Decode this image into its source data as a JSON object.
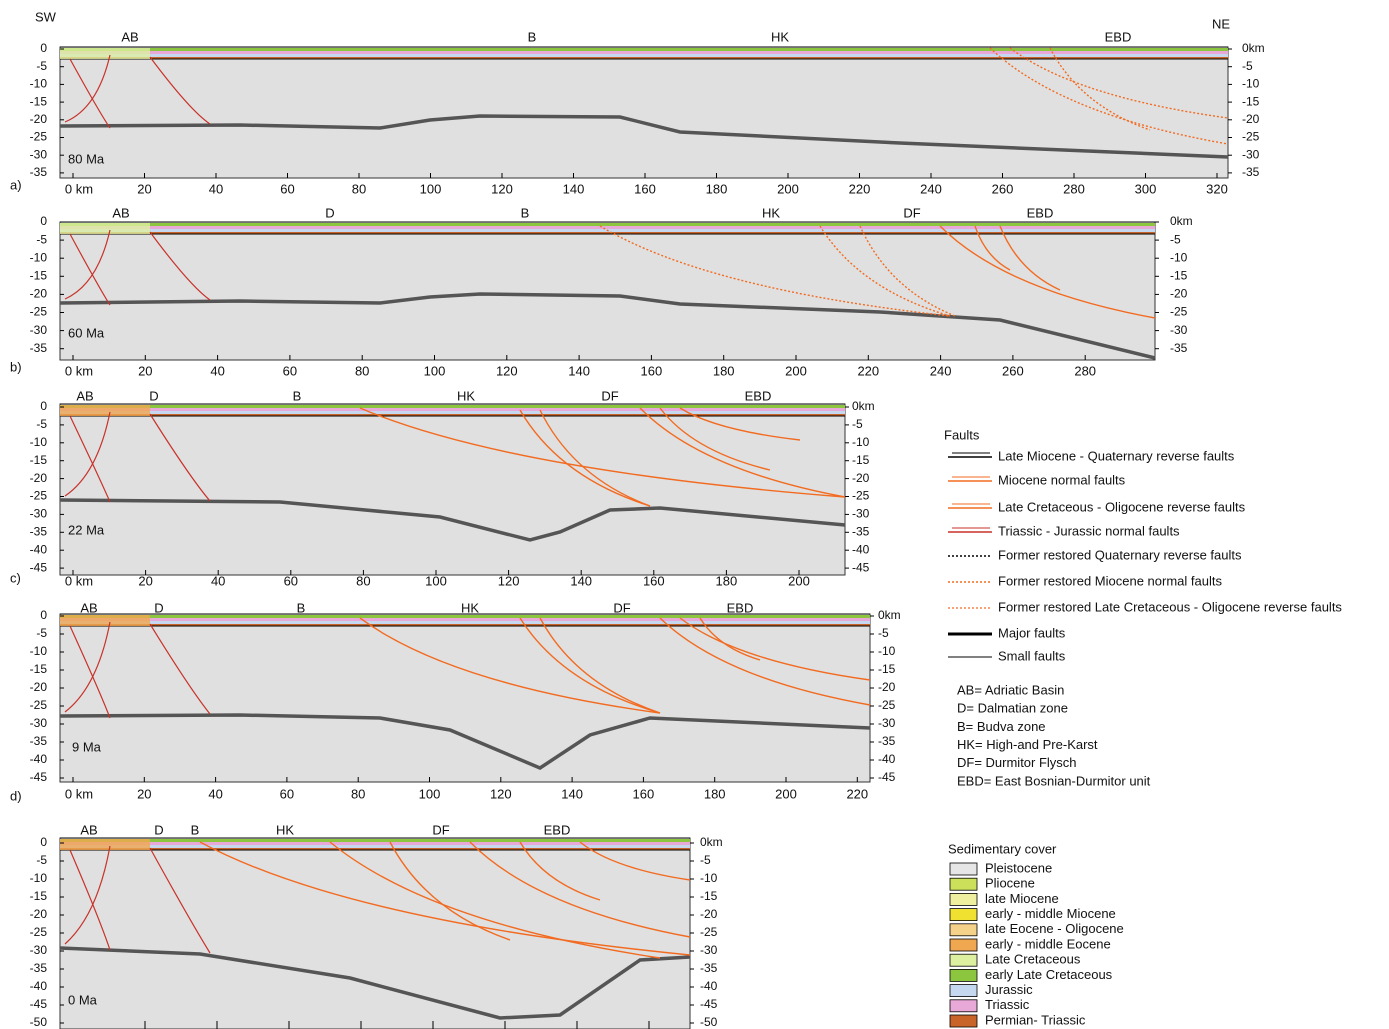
{
  "orientation": {
    "left": "SW",
    "right": "NE"
  },
  "panels": [
    {
      "letter": "a)",
      "age": "80 Ma",
      "zones": [
        "AB",
        "B",
        "HK",
        "EBD"
      ],
      "x_ticks": [
        "0 km",
        "20",
        "40",
        "60",
        "80",
        "100",
        "120",
        "140",
        "160",
        "180",
        "200",
        "220",
        "240",
        "260",
        "280",
        "300",
        "320"
      ],
      "depth_ticks": [
        "0",
        "-5",
        "-10",
        "-15",
        "-20",
        "-25",
        "-30",
        "-35"
      ],
      "right_ticks": [
        "0km",
        "-5",
        "-10",
        "-15",
        "-20",
        "-25",
        "-30",
        "-35"
      ]
    },
    {
      "letter": "b)",
      "age": "60 Ma",
      "zones": [
        "AB",
        "D",
        "B",
        "HK",
        "DF",
        "EBD"
      ],
      "x_ticks": [
        "0 km",
        "20",
        "40",
        "60",
        "80",
        "100",
        "120",
        "140",
        "160",
        "180",
        "200",
        "220",
        "240",
        "260",
        "280"
      ],
      "depth_ticks": [
        "0",
        "-5",
        "-10",
        "-15",
        "-20",
        "-25",
        "-30",
        "-35"
      ],
      "right_ticks": [
        "0km",
        "-5",
        "-10",
        "-15",
        "-20",
        "-25",
        "-30",
        "-35"
      ]
    },
    {
      "letter": "c)",
      "age": "22 Ma",
      "zones": [
        "AB",
        "D",
        "B",
        "HK",
        "DF",
        "EBD"
      ],
      "x_ticks": [
        "0 km",
        "20",
        "40",
        "60",
        "80",
        "100",
        "120",
        "140",
        "160",
        "180",
        "200"
      ],
      "depth_ticks": [
        "0",
        "-5",
        "-10",
        "-15",
        "-20",
        "-25",
        "-30",
        "-35",
        "-40",
        "-45"
      ],
      "right_ticks": [
        "0km",
        "-5",
        "-10",
        "-15",
        "-20",
        "-25",
        "-30",
        "-35",
        "-40",
        "-45"
      ]
    },
    {
      "letter": "d)",
      "age": "9 Ma",
      "zones": [
        "AB",
        "D",
        "B",
        "HK",
        "DF",
        "EBD"
      ],
      "x_ticks": [
        "0 km",
        "20",
        "40",
        "60",
        "80",
        "100",
        "120",
        "140",
        "160",
        "180",
        "200",
        "220"
      ],
      "depth_ticks": [
        "0",
        "-5",
        "-10",
        "-15",
        "-20",
        "-25",
        "-30",
        "-35",
        "-40",
        "-45"
      ],
      "right_ticks": [
        "0km",
        "-5",
        "-10",
        "-15",
        "-20",
        "-25",
        "-30",
        "-35",
        "-40",
        "-45"
      ]
    },
    {
      "age": "0 Ma",
      "zones": [
        "AB",
        "D",
        "B",
        "HK",
        "DF",
        "EBD"
      ],
      "depth_ticks": [
        "0",
        "-5",
        "-10",
        "-15",
        "-20",
        "-25",
        "-30",
        "-35",
        "-40",
        "-45",
        "-50"
      ],
      "right_ticks": [
        "0km",
        "-5",
        "-10",
        "-15",
        "-20",
        "-25",
        "-30",
        "-35",
        "-40",
        "-45",
        "-50"
      ]
    }
  ],
  "faults_legend": {
    "title": "Faults",
    "items": [
      "Late Miocene - Quaternary reverse faults",
      "Miocene normal faults",
      "Late Cretaceous - Oligocene reverse faults",
      "Triassic - Jurassic normal faults",
      "Former restored Quaternary reverse faults",
      "Former restored Miocene normal faults",
      "Former restored Late Cretaceous - Oligocene reverse faults",
      "Major faults",
      "Small faults"
    ]
  },
  "abbreviations": [
    "AB= Adriatic Basin",
    "D= Dalmatian zone",
    "B= Budva zone",
    "HK= High-and Pre-Karst",
    "DF= Durmitor Flysch",
    "EBD= East Bosnian-Durmitor unit"
  ],
  "sedimentary_cover": {
    "title": "Sedimentary cover",
    "items": [
      "Pleistocene",
      "Pliocene",
      "late Miocene",
      "early - middle Miocene",
      "late Eocene - Oligocene",
      "early - middle Eocene",
      "Late Cretaceous",
      "early Late Cretaceous",
      "Jurassic",
      "Triassic",
      "Permian- Triassic"
    ]
  }
}
